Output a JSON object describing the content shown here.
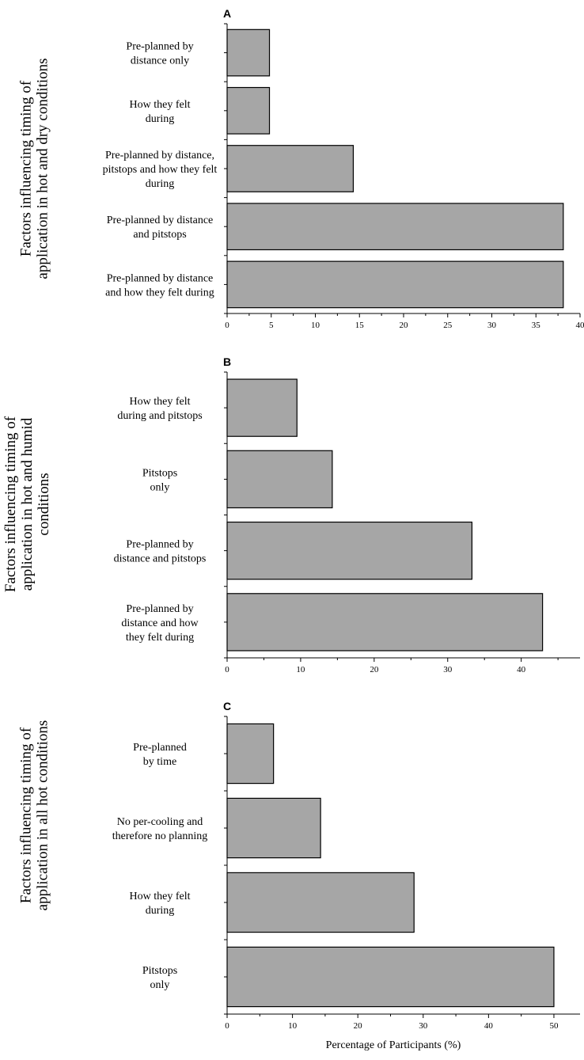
{
  "x_axis_title": "Percentage of Participants (%)",
  "chart_data": [
    {
      "type": "bar",
      "orientation": "horizontal",
      "panel": "A",
      "ylabel": [
        "Factors influencing timing of",
        "application in hot and dry conditions"
      ],
      "categories": [
        [
          "Pre-planned by",
          "distance only"
        ],
        [
          "How they felt",
          "during"
        ],
        [
          "Pre-planned by distance,",
          "pitstops and how they felt",
          "during"
        ],
        [
          "Pre-planned by distance",
          "and pitstops"
        ],
        [
          "Pre-planned by distance",
          "and how they felt during"
        ]
      ],
      "values": [
        4.8,
        4.8,
        14.3,
        38.1,
        38.1
      ],
      "xlim": [
        0,
        40
      ],
      "xticks": [
        0,
        5,
        10,
        15,
        20,
        25,
        30,
        35,
        40
      ],
      "xlabel": ""
    },
    {
      "type": "bar",
      "orientation": "horizontal",
      "panel": "B",
      "ylabel": [
        "Factors influencing timing of",
        "application in hot and humid",
        "conditions"
      ],
      "categories": [
        [
          "How they felt",
          "during and pitstops"
        ],
        [
          "Pitstops",
          "only"
        ],
        [
          "Pre-planned by",
          "distance and pitstops"
        ],
        [
          "Pre-planned by",
          "distance and how",
          "they felt during"
        ]
      ],
      "values": [
        9.5,
        14.3,
        33.3,
        42.9
      ],
      "xlim": [
        0,
        48
      ],
      "xticks": [
        0,
        10,
        20,
        30,
        40
      ],
      "xlabel": ""
    },
    {
      "type": "bar",
      "orientation": "horizontal",
      "panel": "C",
      "ylabel": [
        "Factors influencing timing of",
        "application in all hot conditions"
      ],
      "categories": [
        [
          "Pre-planned",
          "by time"
        ],
        [
          "No per-cooling and",
          "therefore no planning"
        ],
        [
          "How they felt",
          "during"
        ],
        [
          "Pitstops",
          "only"
        ]
      ],
      "values": [
        7.1,
        14.3,
        28.6,
        50.0
      ],
      "xlim": [
        0,
        54
      ],
      "xticks": [
        0,
        10,
        20,
        30,
        40,
        50
      ],
      "xlabel": "Percentage of Participants (%)"
    }
  ]
}
